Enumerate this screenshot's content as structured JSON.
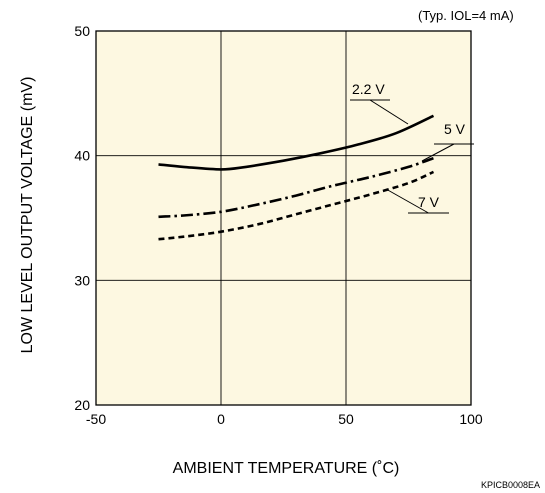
{
  "chart_data": {
    "type": "line",
    "condition_note": "(Typ. IOL=4 mA)",
    "xlabel": "AMBIENT TEMPERATURE (˚C)",
    "ylabel": "LOW LEVEL OUTPUT VOLTAGE (mV)",
    "xlim": [
      -50,
      100
    ],
    "ylim": [
      20,
      50
    ],
    "xticks": [
      "-50",
      "0",
      "50",
      "100"
    ],
    "yticks": [
      "20",
      "30",
      "40",
      "50"
    ],
    "grid": true,
    "series": [
      {
        "name": "2.2 V",
        "style": "solid",
        "x": [
          -25,
          -15,
          0,
          10,
          25,
          40,
          55,
          70,
          85
        ],
        "y": [
          39.3,
          39.1,
          38.9,
          39.1,
          39.6,
          40.2,
          40.9,
          41.8,
          43.2
        ]
      },
      {
        "name": "5 V",
        "style": "dash-dot",
        "x": [
          -25,
          -15,
          0,
          15,
          30,
          45,
          60,
          75,
          85
        ],
        "y": [
          35.1,
          35.2,
          35.5,
          36.1,
          36.8,
          37.6,
          38.3,
          39.1,
          39.8
        ]
      },
      {
        "name": "7 V",
        "style": "dashed",
        "x": [
          -25,
          -15,
          0,
          15,
          30,
          45,
          60,
          75,
          85
        ],
        "y": [
          33.3,
          33.5,
          33.9,
          34.5,
          35.3,
          36.1,
          36.9,
          37.8,
          38.7
        ]
      }
    ],
    "colors": {
      "plot_background": "#fdf8e1",
      "line": "#000000"
    }
  },
  "footer": {
    "code": "KPICB0008EA"
  }
}
